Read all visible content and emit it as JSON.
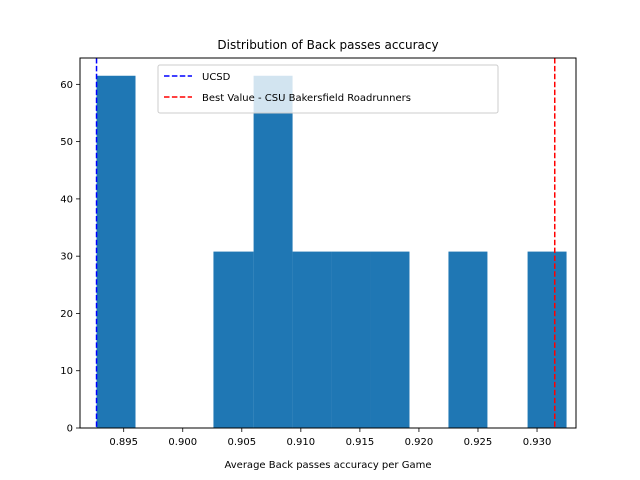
{
  "chart_data": {
    "type": "bar",
    "title": "Distribution of Back passes accuracy",
    "xlabel": "Average Back passes accuracy per Game",
    "ylabel": "",
    "xlim": [
      0.8913,
      0.9333
    ],
    "ylim": [
      0,
      64.6
    ],
    "x_ticks": [
      0.895,
      0.9,
      0.905,
      0.91,
      0.915,
      0.92,
      0.925,
      0.93
    ],
    "x_tick_labels": [
      "0.895",
      "0.900",
      "0.905",
      "0.910",
      "0.915",
      "0.920",
      "0.925",
      "0.930"
    ],
    "y_ticks": [
      0,
      10,
      20,
      30,
      40,
      50,
      60
    ],
    "y_tick_labels": [
      "0",
      "10",
      "20",
      "30",
      "40",
      "50",
      "60"
    ],
    "bins": [
      {
        "x0": 0.8927,
        "x1": 0.896,
        "value": 61.5
      },
      {
        "x0": 0.896,
        "x1": 0.8993,
        "value": 0
      },
      {
        "x0": 0.8993,
        "x1": 0.9026,
        "value": 0
      },
      {
        "x0": 0.9026,
        "x1": 0.906,
        "value": 30.8
      },
      {
        "x0": 0.906,
        "x1": 0.9093,
        "value": 61.5
      },
      {
        "x0": 0.9093,
        "x1": 0.9126,
        "value": 30.8
      },
      {
        "x0": 0.9126,
        "x1": 0.9159,
        "value": 30.8
      },
      {
        "x0": 0.9159,
        "x1": 0.9192,
        "value": 30.8
      },
      {
        "x0": 0.9192,
        "x1": 0.9225,
        "value": 0
      },
      {
        "x0": 0.9225,
        "x1": 0.9258,
        "value": 30.8
      },
      {
        "x0": 0.9258,
        "x1": 0.9292,
        "value": 0
      },
      {
        "x0": 0.9292,
        "x1": 0.9325,
        "value": 30.8
      }
    ],
    "bar_color": "#1f77b4",
    "reference_lines": [
      {
        "name": "UCSD",
        "x": 0.8927,
        "color": "#0000ff",
        "style": "dashed"
      },
      {
        "name": "Best Value - CSU Bakersfield Roadrunners",
        "x": 0.9315,
        "color": "#ff0000",
        "style": "dashed"
      }
    ],
    "legend_position": "top-center",
    "grid": false
  }
}
